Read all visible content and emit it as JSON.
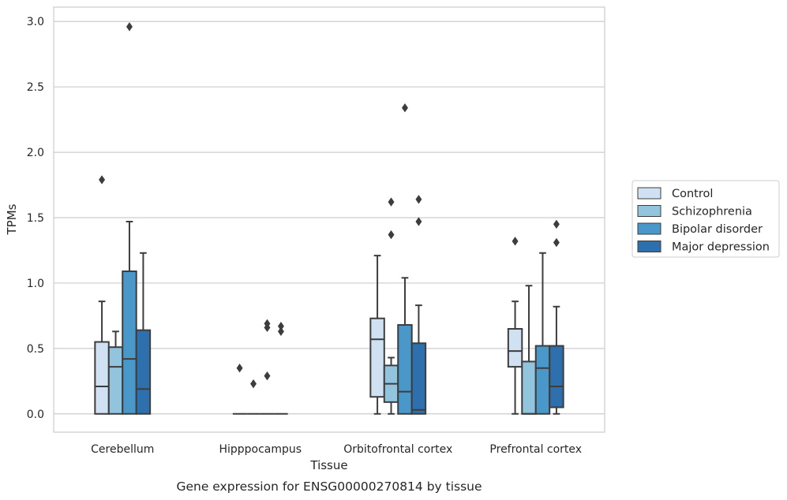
{
  "caption": "Gene expression for ENSG00000270814 by tissue",
  "chart_data": {
    "type": "boxplot",
    "xlabel": "Tissue",
    "ylabel": "TPMs",
    "ylim": [
      -0.14,
      3.11
    ],
    "yticks": [
      0.0,
      0.5,
      1.0,
      1.5,
      2.0,
      2.5,
      3.0
    ],
    "ytick_labels": [
      "0.0",
      "0.5",
      "1.0",
      "1.5",
      "2.0",
      "2.5",
      "3.0"
    ],
    "grid": "horizontal",
    "legend_position": "right",
    "categories": [
      "Cerebellum",
      "Hipppocampus",
      "Orbitofrontal cortex",
      "Prefrontal cortex"
    ],
    "series": [
      {
        "name": "Control",
        "color": "#cfe1f2",
        "boxes": [
          {
            "whislo": 0.0,
            "q1": 0.0,
            "med": 0.21,
            "q3": 0.55,
            "whishi": 0.86,
            "fliers": [
              1.79
            ]
          },
          {
            "whislo": 0.0,
            "q1": 0.0,
            "med": 0.0,
            "q3": 0.0,
            "whishi": 0.0,
            "fliers": [
              0.35
            ]
          },
          {
            "whislo": 0.0,
            "q1": 0.13,
            "med": 0.57,
            "q3": 0.73,
            "whishi": 1.21,
            "fliers": []
          },
          {
            "whislo": 0.0,
            "q1": 0.36,
            "med": 0.48,
            "q3": 0.65,
            "whishi": 0.86,
            "fliers": [
              1.32
            ]
          }
        ]
      },
      {
        "name": "Schizophrenia",
        "color": "#93c4de",
        "boxes": [
          {
            "whislo": 0.0,
            "q1": 0.0,
            "med": 0.36,
            "q3": 0.51,
            "whishi": 0.63,
            "fliers": []
          },
          {
            "whislo": 0.0,
            "q1": 0.0,
            "med": 0.0,
            "q3": 0.0,
            "whishi": 0.0,
            "fliers": [
              0.23
            ]
          },
          {
            "whislo": 0.0,
            "q1": 0.09,
            "med": 0.23,
            "q3": 0.37,
            "whishi": 0.43,
            "fliers": [
              1.37,
              1.62
            ]
          },
          {
            "whislo": 0.0,
            "q1": 0.0,
            "med": 0.0,
            "q3": 0.4,
            "whishi": 0.98,
            "fliers": []
          }
        ]
      },
      {
        "name": "Bipolar disorder",
        "color": "#4a98c9",
        "boxes": [
          {
            "whislo": 0.0,
            "q1": 0.0,
            "med": 0.42,
            "q3": 1.09,
            "whishi": 1.47,
            "fliers": [
              2.96
            ]
          },
          {
            "whislo": 0.0,
            "q1": 0.0,
            "med": 0.0,
            "q3": 0.0,
            "whishi": 0.0,
            "fliers": [
              0.29,
              0.66,
              0.69
            ]
          },
          {
            "whislo": 0.0,
            "q1": 0.0,
            "med": 0.17,
            "q3": 0.68,
            "whishi": 1.04,
            "fliers": [
              2.34
            ]
          },
          {
            "whislo": 0.0,
            "q1": 0.0,
            "med": 0.35,
            "q3": 0.52,
            "whishi": 1.23,
            "fliers": []
          }
        ]
      },
      {
        "name": "Major depression",
        "color": "#2e6fad",
        "boxes": [
          {
            "whislo": 0.0,
            "q1": 0.0,
            "med": 0.19,
            "q3": 0.64,
            "whishi": 1.23,
            "fliers": []
          },
          {
            "whislo": 0.0,
            "q1": 0.0,
            "med": 0.0,
            "q3": 0.0,
            "whishi": 0.0,
            "fliers": [
              0.63,
              0.67
            ]
          },
          {
            "whislo": 0.0,
            "q1": 0.0,
            "med": 0.03,
            "q3": 0.54,
            "whishi": 0.83,
            "fliers": [
              1.47,
              1.64
            ]
          },
          {
            "whislo": 0.0,
            "q1": 0.05,
            "med": 0.21,
            "q3": 0.52,
            "whishi": 0.82,
            "fliers": [
              1.31,
              1.45
            ]
          }
        ]
      }
    ]
  }
}
